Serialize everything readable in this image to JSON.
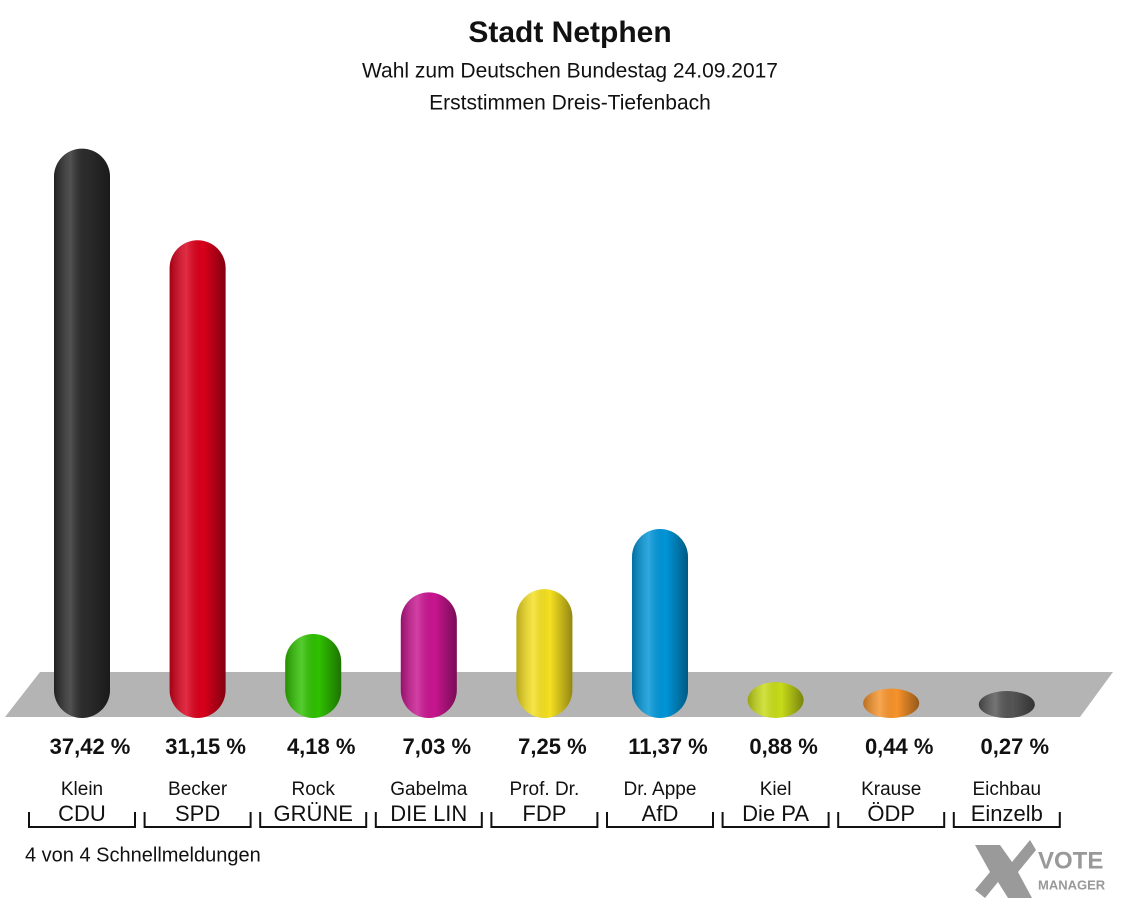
{
  "chart_data": {
    "type": "bar",
    "title": "Stadt Netphen",
    "subtitle": "Wahl zum Deutschen Bundestag 24.09.2017",
    "subtitle2": "Erststimmen Dreis-Tiefenbach",
    "candidates": [
      "Klein",
      "Becker",
      "Rock",
      "Gabelma",
      "Prof. Dr.",
      "Dr. Appe",
      "Kiel",
      "Krause",
      "Eichbau"
    ],
    "categories": [
      "CDU",
      "SPD",
      "GRÜNE",
      "DIE LIN",
      "FDP",
      "AfD",
      "Die PA",
      "ÖDP",
      "Einzelb"
    ],
    "values": [
      37.42,
      31.15,
      4.18,
      7.03,
      7.25,
      11.37,
      0.88,
      0.44,
      0.27
    ],
    "value_labels": [
      "37,42 %",
      "31,15 %",
      "4,18 %",
      "7,03 %",
      "7,25 %",
      "11,37 %",
      "0,88 %",
      "0,44 %",
      "0,27 %"
    ],
    "colors": [
      "#2b2b2b",
      "#d9001b",
      "#2fc000",
      "#c8158f",
      "#f5e020",
      "#0095d8",
      "#c8dc18",
      "#f7932a",
      "#555555"
    ],
    "footer": "4 von 4 Schnellmeldungen",
    "logo": [
      "VOTE",
      "MANAGER"
    ]
  }
}
